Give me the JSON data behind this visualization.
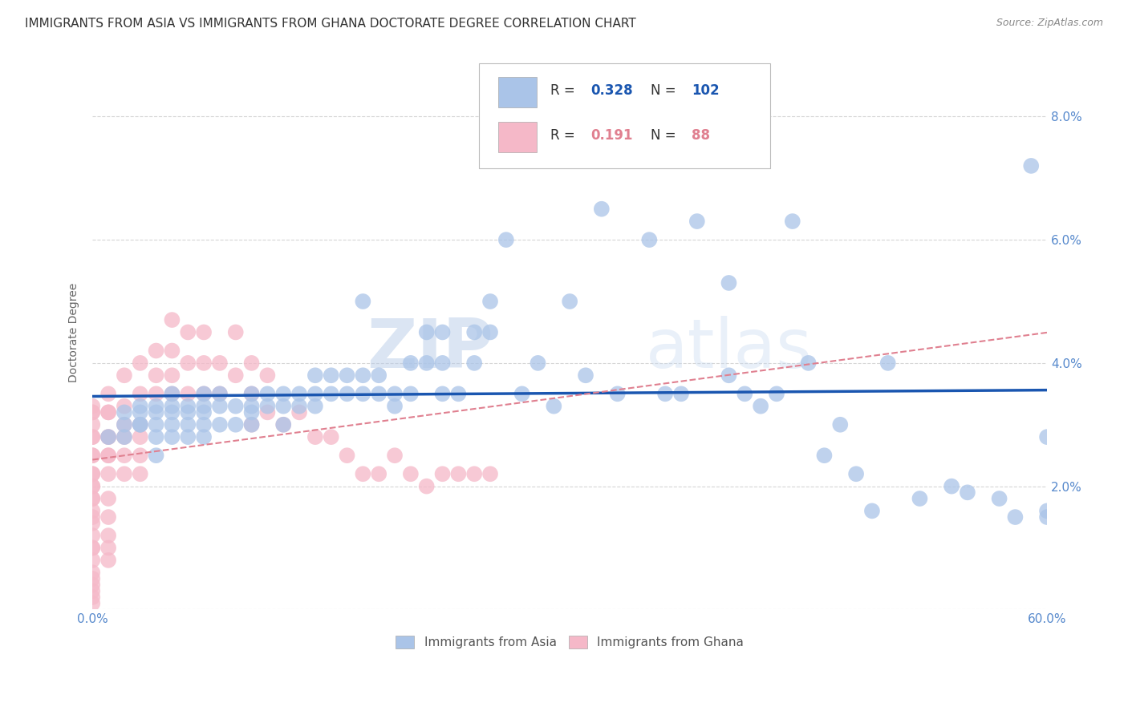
{
  "title": "IMMIGRANTS FROM ASIA VS IMMIGRANTS FROM GHANA DOCTORATE DEGREE CORRELATION CHART",
  "source": "Source: ZipAtlas.com",
  "ylabel": "Doctorate Degree",
  "legend_blue_label": "Immigrants from Asia",
  "legend_pink_label": "Immigrants from Ghana",
  "blue_R": 0.328,
  "blue_N": 102,
  "pink_R": 0.191,
  "pink_N": 88,
  "xlim": [
    0.0,
    0.6
  ],
  "ylim": [
    0.0,
    0.09
  ],
  "x_ticks": [
    0.0,
    0.1,
    0.2,
    0.3,
    0.4,
    0.5,
    0.6
  ],
  "x_tick_labels": [
    "0.0%",
    "",
    "",
    "",
    "",
    "",
    "60.0%"
  ],
  "y_ticks": [
    0.0,
    0.02,
    0.04,
    0.06,
    0.08
  ],
  "y_tick_labels_right": [
    "",
    "2.0%",
    "4.0%",
    "6.0%",
    "8.0%"
  ],
  "blue_color": "#aac4e8",
  "blue_line_color": "#1a56b0",
  "pink_color": "#f5b8c8",
  "pink_line_color": "#e08090",
  "background_color": "#ffffff",
  "grid_color": "#cccccc",
  "watermark_zip": "ZIP",
  "watermark_atlas": "atlas",
  "title_fontsize": 11,
  "axis_label_fontsize": 10,
  "tick_fontsize": 11,
  "blue_scatter_x": [
    0.01,
    0.02,
    0.02,
    0.02,
    0.03,
    0.03,
    0.03,
    0.03,
    0.04,
    0.04,
    0.04,
    0.04,
    0.04,
    0.05,
    0.05,
    0.05,
    0.05,
    0.05,
    0.06,
    0.06,
    0.06,
    0.06,
    0.07,
    0.07,
    0.07,
    0.07,
    0.07,
    0.08,
    0.08,
    0.08,
    0.09,
    0.09,
    0.1,
    0.1,
    0.1,
    0.1,
    0.11,
    0.11,
    0.12,
    0.12,
    0.12,
    0.13,
    0.13,
    0.14,
    0.14,
    0.14,
    0.15,
    0.15,
    0.16,
    0.16,
    0.17,
    0.17,
    0.17,
    0.18,
    0.18,
    0.19,
    0.19,
    0.2,
    0.2,
    0.21,
    0.21,
    0.22,
    0.22,
    0.22,
    0.23,
    0.24,
    0.24,
    0.25,
    0.25,
    0.26,
    0.27,
    0.28,
    0.29,
    0.3,
    0.31,
    0.32,
    0.33,
    0.35,
    0.36,
    0.37,
    0.38,
    0.4,
    0.4,
    0.41,
    0.42,
    0.43,
    0.44,
    0.45,
    0.46,
    0.47,
    0.48,
    0.49,
    0.5,
    0.52,
    0.54,
    0.55,
    0.57,
    0.58,
    0.59,
    0.6,
    0.6,
    0.6
  ],
  "blue_scatter_y": [
    0.028,
    0.03,
    0.032,
    0.028,
    0.03,
    0.033,
    0.032,
    0.03,
    0.033,
    0.03,
    0.032,
    0.028,
    0.025,
    0.033,
    0.03,
    0.032,
    0.028,
    0.035,
    0.033,
    0.03,
    0.028,
    0.032,
    0.035,
    0.033,
    0.03,
    0.032,
    0.028,
    0.035,
    0.033,
    0.03,
    0.033,
    0.03,
    0.035,
    0.033,
    0.03,
    0.032,
    0.035,
    0.033,
    0.035,
    0.033,
    0.03,
    0.035,
    0.033,
    0.038,
    0.035,
    0.033,
    0.038,
    0.035,
    0.038,
    0.035,
    0.038,
    0.035,
    0.05,
    0.038,
    0.035,
    0.035,
    0.033,
    0.04,
    0.035,
    0.045,
    0.04,
    0.045,
    0.04,
    0.035,
    0.035,
    0.045,
    0.04,
    0.045,
    0.05,
    0.06,
    0.035,
    0.04,
    0.033,
    0.05,
    0.038,
    0.065,
    0.035,
    0.06,
    0.035,
    0.035,
    0.063,
    0.038,
    0.053,
    0.035,
    0.033,
    0.035,
    0.063,
    0.04,
    0.025,
    0.03,
    0.022,
    0.016,
    0.04,
    0.018,
    0.02,
    0.019,
    0.018,
    0.015,
    0.072,
    0.028,
    0.016,
    0.015
  ],
  "pink_scatter_x": [
    0.0,
    0.0,
    0.0,
    0.0,
    0.0,
    0.0,
    0.0,
    0.0,
    0.0,
    0.0,
    0.0,
    0.0,
    0.0,
    0.0,
    0.0,
    0.0,
    0.0,
    0.0,
    0.0,
    0.0,
    0.0,
    0.0,
    0.0,
    0.0,
    0.0,
    0.0,
    0.0,
    0.01,
    0.01,
    0.01,
    0.01,
    0.01,
    0.01,
    0.01,
    0.01,
    0.01,
    0.01,
    0.01,
    0.01,
    0.01,
    0.02,
    0.02,
    0.02,
    0.02,
    0.02,
    0.02,
    0.03,
    0.03,
    0.03,
    0.03,
    0.03,
    0.03,
    0.04,
    0.04,
    0.04,
    0.05,
    0.05,
    0.05,
    0.05,
    0.06,
    0.06,
    0.06,
    0.07,
    0.07,
    0.07,
    0.08,
    0.08,
    0.09,
    0.09,
    0.1,
    0.1,
    0.1,
    0.11,
    0.11,
    0.12,
    0.13,
    0.14,
    0.15,
    0.16,
    0.17,
    0.18,
    0.19,
    0.2,
    0.21,
    0.22,
    0.23,
    0.24,
    0.25
  ],
  "pink_scatter_y": [
    0.032,
    0.028,
    0.025,
    0.022,
    0.02,
    0.018,
    0.016,
    0.014,
    0.012,
    0.01,
    0.008,
    0.006,
    0.005,
    0.004,
    0.003,
    0.002,
    0.001,
    0.018,
    0.02,
    0.022,
    0.025,
    0.028,
    0.03,
    0.032,
    0.033,
    0.015,
    0.01,
    0.032,
    0.028,
    0.025,
    0.022,
    0.018,
    0.015,
    0.012,
    0.01,
    0.008,
    0.032,
    0.028,
    0.025,
    0.035,
    0.038,
    0.033,
    0.03,
    0.028,
    0.025,
    0.022,
    0.04,
    0.035,
    0.03,
    0.028,
    0.025,
    0.022,
    0.042,
    0.038,
    0.035,
    0.047,
    0.042,
    0.038,
    0.035,
    0.045,
    0.04,
    0.035,
    0.045,
    0.04,
    0.035,
    0.04,
    0.035,
    0.045,
    0.038,
    0.04,
    0.035,
    0.03,
    0.038,
    0.032,
    0.03,
    0.032,
    0.028,
    0.028,
    0.025,
    0.022,
    0.022,
    0.025,
    0.022,
    0.02,
    0.022,
    0.022,
    0.022,
    0.022
  ]
}
